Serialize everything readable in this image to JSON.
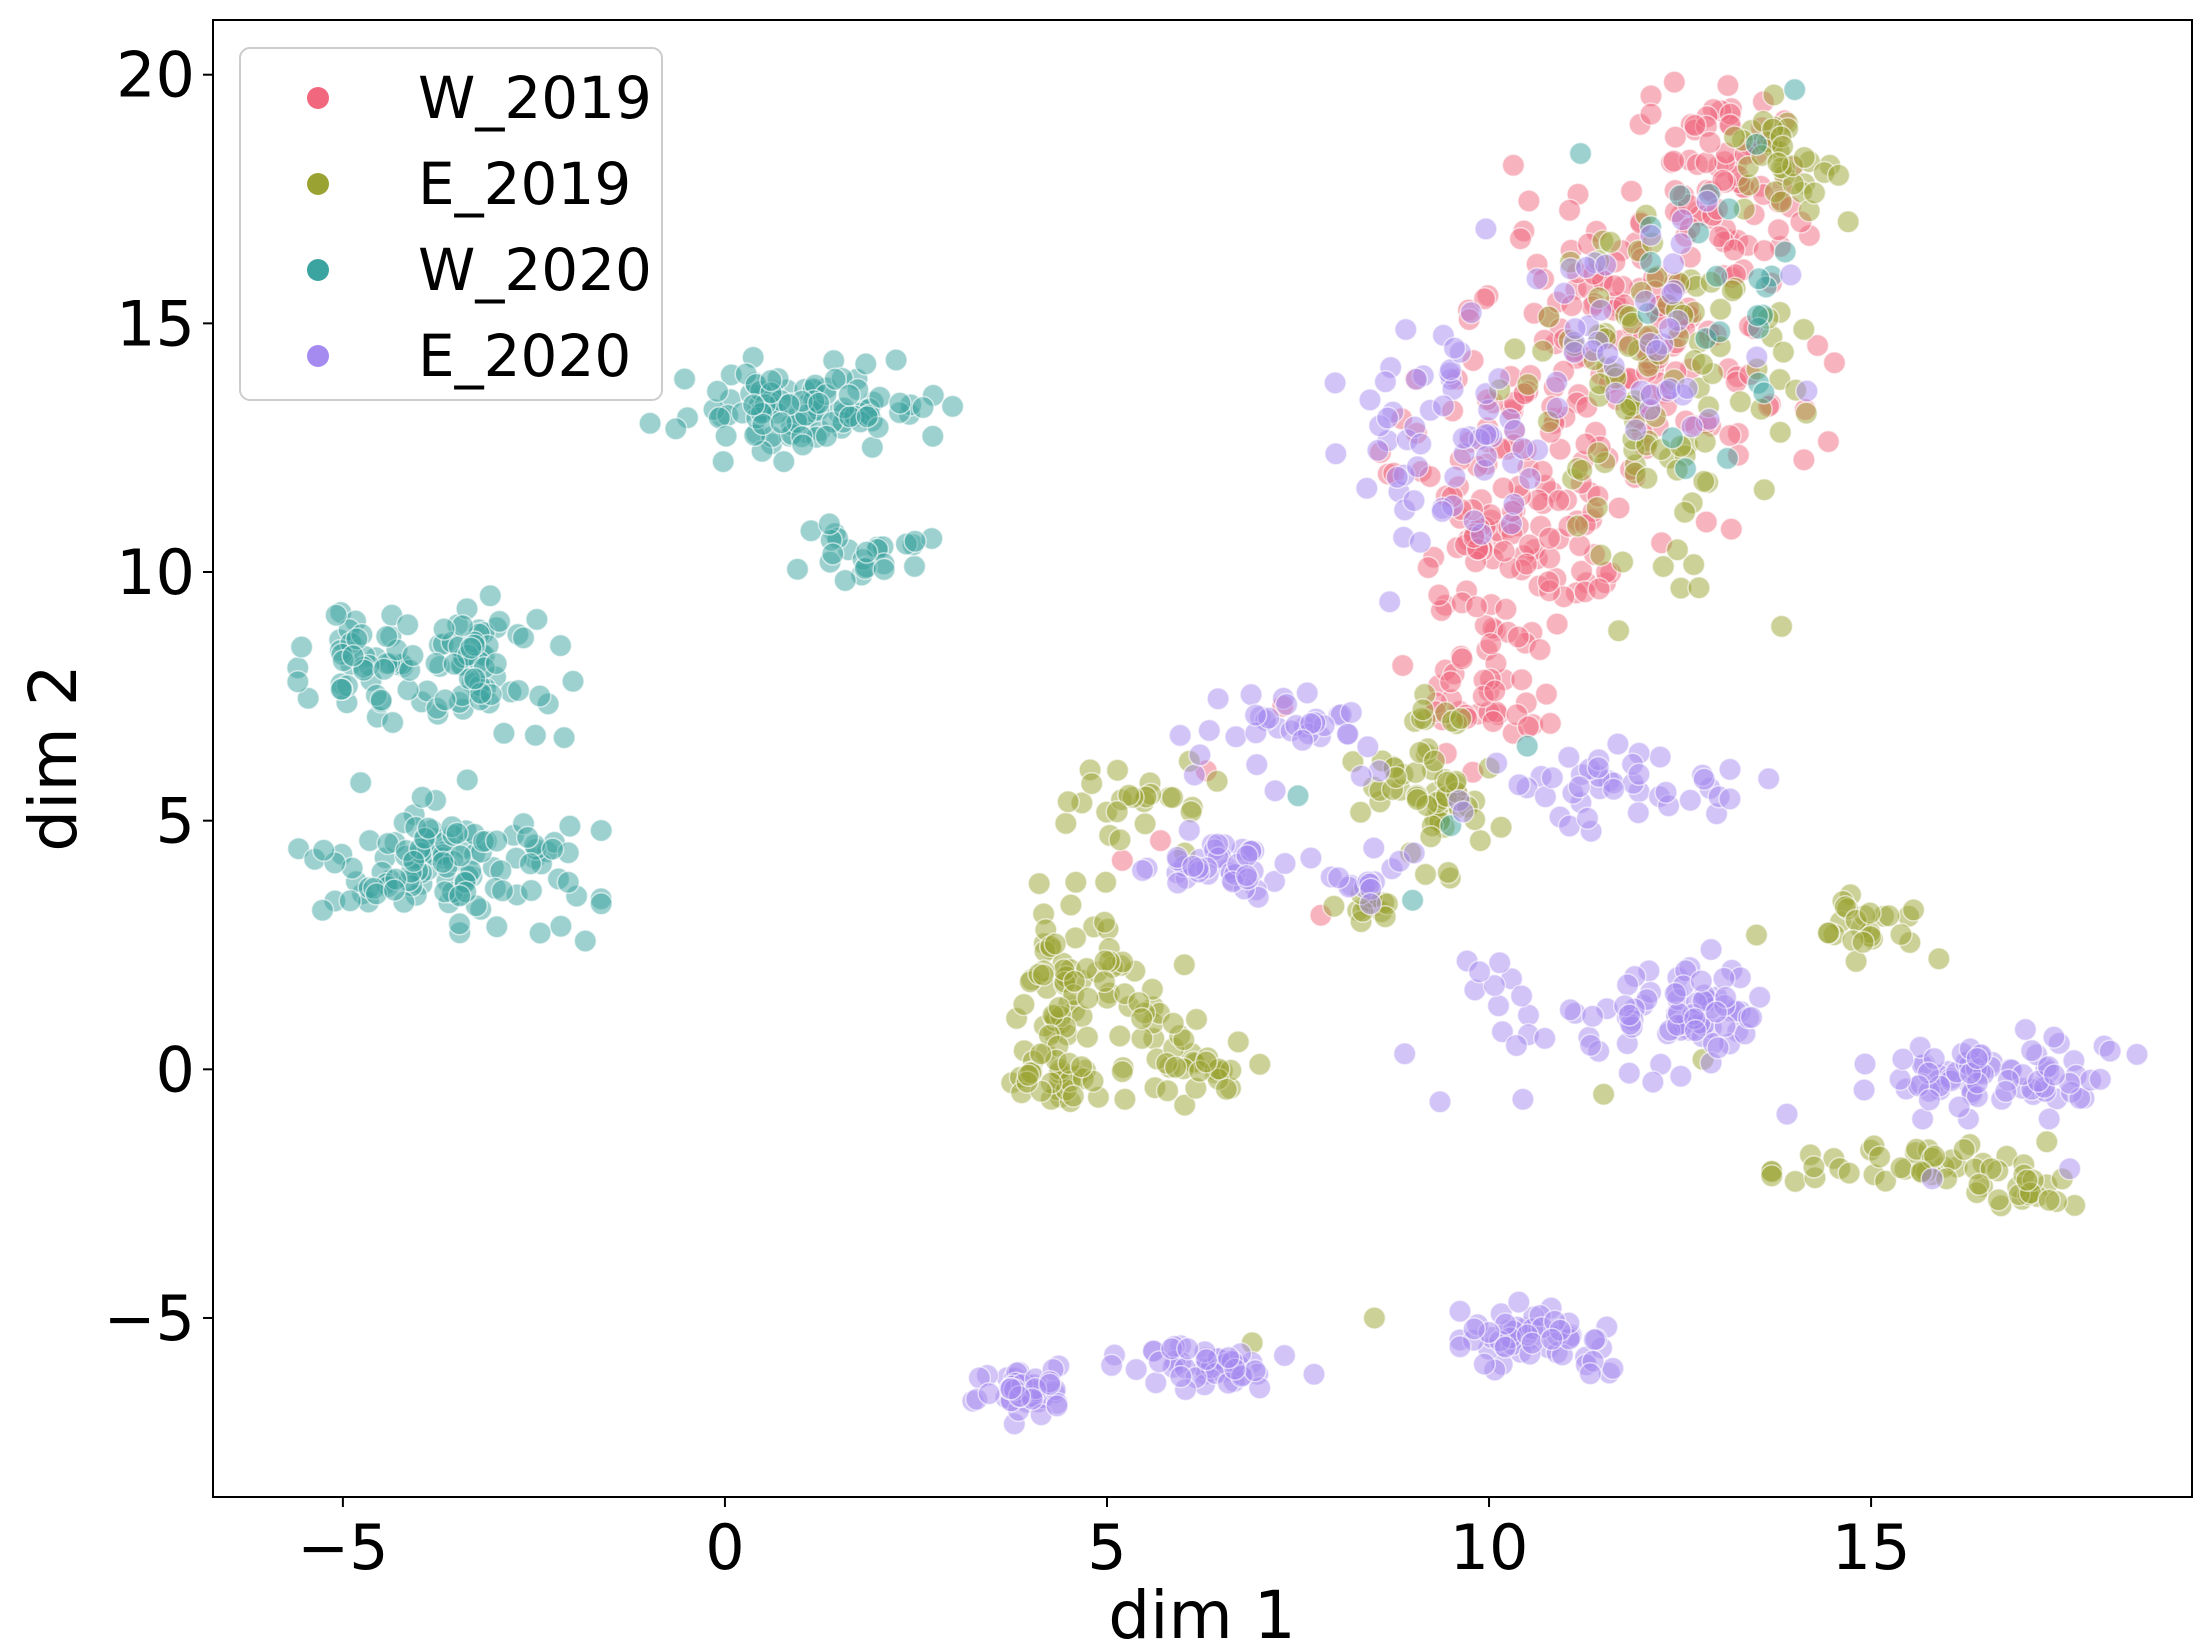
{
  "chart_data": {
    "type": "scatter",
    "title": "",
    "xlabel": "dim 1",
    "ylabel": "dim 2",
    "xlim": [
      -6.7,
      19.2
    ],
    "ylim": [
      -8.6,
      21.1
    ],
    "xticks": [
      -5,
      0,
      5,
      10,
      15
    ],
    "yticks": [
      -5,
      0,
      5,
      10,
      15,
      20
    ],
    "xtick_labels": [
      "−5",
      "0",
      "5",
      "10",
      "15"
    ],
    "ytick_labels": [
      "−5",
      "0",
      "5",
      "10",
      "15",
      "20"
    ],
    "grid": false,
    "legend_position": "top-left",
    "point_alpha": 0.5,
    "series": [
      {
        "name": "W_2019",
        "color": "#f0677e",
        "clusters": [
          {
            "cx": 12.0,
            "cy": 14.5,
            "sx": 1.4,
            "sy": 2.5,
            "n": 170
          },
          {
            "cx": 13.2,
            "cy": 18.0,
            "sx": 0.6,
            "sy": 1.1,
            "n": 60
          },
          {
            "cx": 10.2,
            "cy": 11.0,
            "sx": 0.9,
            "sy": 1.6,
            "n": 120
          },
          {
            "cx": 10.0,
            "cy": 7.5,
            "sx": 0.6,
            "sy": 1.0,
            "n": 40
          }
        ],
        "points": [
          [
            5.2,
            4.2
          ],
          [
            6.3,
            6.0
          ],
          [
            5.7,
            4.6
          ],
          [
            8.5,
            3.3
          ],
          [
            7.8,
            3.1
          ],
          [
            9.6,
            5.5
          ],
          [
            7.3,
            7.3
          ]
        ]
      },
      {
        "name": "E_2019",
        "color": "#9aa332",
        "clusters": [
          {
            "cx": 12.3,
            "cy": 13.5,
            "sx": 1.2,
            "sy": 2.6,
            "n": 110
          },
          {
            "cx": 13.8,
            "cy": 18.3,
            "sx": 0.5,
            "sy": 0.9,
            "n": 35
          },
          {
            "cx": 9.2,
            "cy": 5.8,
            "sx": 0.6,
            "sy": 1.3,
            "n": 60
          },
          {
            "cx": 4.4,
            "cy": 1.6,
            "sx": 0.35,
            "sy": 1.2,
            "n": 60
          },
          {
            "cx": 4.2,
            "cy": -0.2,
            "sx": 0.4,
            "sy": 0.3,
            "n": 25
          },
          {
            "cx": 6.1,
            "cy": 0.0,
            "sx": 0.5,
            "sy": 0.4,
            "n": 30
          },
          {
            "cx": 5.4,
            "cy": 1.3,
            "sx": 0.5,
            "sy": 0.7,
            "n": 25
          },
          {
            "cx": 5.4,
            "cy": 5.3,
            "sx": 0.6,
            "sy": 0.6,
            "n": 25
          },
          {
            "cx": 8.3,
            "cy": 3.2,
            "sx": 0.4,
            "sy": 0.2,
            "n": 12
          },
          {
            "cx": 15.0,
            "cy": 2.9,
            "sx": 0.7,
            "sy": 0.5,
            "n": 25
          },
          {
            "cx": 15.5,
            "cy": -1.9,
            "sx": 1.0,
            "sy": 0.35,
            "n": 40
          },
          {
            "cx": 17.1,
            "cy": -2.4,
            "sx": 0.5,
            "sy": 0.3,
            "n": 20
          }
        ],
        "points": [
          [
            8.5,
            -5.0
          ],
          [
            12.8,
            0.2
          ],
          [
            11.5,
            -0.5
          ],
          [
            13.5,
            2.7
          ],
          [
            6.9,
            -5.5
          ]
        ]
      },
      {
        "name": "W_2020",
        "color": "#3ba3a0",
        "clusters": [
          {
            "cx": -3.7,
            "cy": 8.2,
            "sx": 1.05,
            "sy": 0.85,
            "n": 110
          },
          {
            "cx": -3.6,
            "cy": 4.2,
            "sx": 1.1,
            "sy": 0.9,
            "n": 120
          },
          {
            "cx": 1.0,
            "cy": 13.3,
            "sx": 1.1,
            "sy": 0.6,
            "n": 110
          },
          {
            "cx": 1.8,
            "cy": 10.4,
            "sx": 0.6,
            "sy": 0.35,
            "n": 25
          },
          {
            "cx": 12.8,
            "cy": 15.5,
            "sx": 0.9,
            "sy": 2.4,
            "n": 22
          }
        ],
        "points": [
          [
            9.5,
            4.9
          ],
          [
            7.5,
            5.5
          ],
          [
            10.5,
            6.5
          ],
          [
            9.0,
            3.4
          ],
          [
            14.0,
            19.7
          ],
          [
            13.5,
            18.6
          ],
          [
            12.4,
            12.7
          ]
        ]
      },
      {
        "name": "E_2020",
        "color": "#a58af0",
        "clusters": [
          {
            "cx": 9.4,
            "cy": 13.0,
            "sx": 0.8,
            "sy": 1.4,
            "n": 60
          },
          {
            "cx": 12.0,
            "cy": 15.0,
            "sx": 1.2,
            "sy": 2.0,
            "n": 45
          },
          {
            "cx": 6.4,
            "cy": 4.1,
            "sx": 0.6,
            "sy": 0.4,
            "n": 40
          },
          {
            "cx": 7.5,
            "cy": 6.9,
            "sx": 0.9,
            "sy": 0.7,
            "n": 35
          },
          {
            "cx": 11.5,
            "cy": 5.6,
            "sx": 1.2,
            "sy": 0.6,
            "n": 45
          },
          {
            "cx": 12.8,
            "cy": 1.2,
            "sx": 0.55,
            "sy": 0.8,
            "n": 60
          },
          {
            "cx": 16.5,
            "cy": -0.1,
            "sx": 1.1,
            "sy": 0.5,
            "n": 80
          },
          {
            "cx": 10.8,
            "cy": 0.9,
            "sx": 1.3,
            "sy": 1.0,
            "n": 35
          },
          {
            "cx": 3.9,
            "cy": -6.5,
            "sx": 0.4,
            "sy": 0.35,
            "n": 50
          },
          {
            "cx": 6.5,
            "cy": -5.9,
            "sx": 0.8,
            "sy": 0.3,
            "n": 50
          },
          {
            "cx": 10.7,
            "cy": -5.4,
            "sx": 0.6,
            "sy": 0.4,
            "n": 60
          },
          {
            "cx": 8.3,
            "cy": 3.8,
            "sx": 0.4,
            "sy": 0.4,
            "n": 15
          }
        ],
        "points": [
          [
            7.2,
            5.6
          ],
          [
            8.7,
            9.4
          ],
          [
            9.1,
            10.6
          ],
          [
            13.9,
            -0.9
          ],
          [
            15.8,
            -2.2
          ],
          [
            17.6,
            -2.0
          ],
          [
            18.0,
            -0.2
          ]
        ]
      }
    ]
  }
}
